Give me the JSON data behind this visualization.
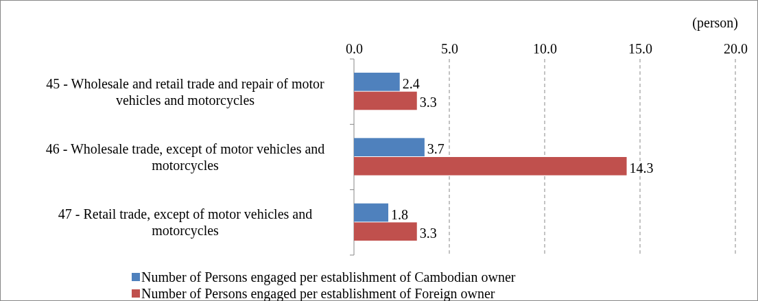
{
  "chart_data": {
    "type": "bar",
    "orientation": "horizontal",
    "xlabel": "(person)",
    "categories": [
      "45 - Wholesale and retail trade and repair of motor vehicles and motorcycles",
      "46 - Wholesale trade, except of motor vehicles and motorcycles",
      "47 - Retail trade, except of motor vehicles and motorcycles"
    ],
    "series": [
      {
        "name": "Number of Persons engaged per establishment of Cambodian owner",
        "color": "#4f81bd",
        "values": [
          2.4,
          3.7,
          1.8
        ]
      },
      {
        "name": "Number of Persons engaged per establishment of Foreign owner",
        "color": "#c0504d",
        "values": [
          3.3,
          14.3,
          3.3
        ]
      }
    ],
    "xlim": [
      0,
      20
    ],
    "xticks": [
      {
        "value": 0,
        "label": "0.0"
      },
      {
        "value": 5,
        "label": "5.0"
      },
      {
        "value": 10,
        "label": "10.0"
      },
      {
        "value": 15,
        "label": "15.0"
      },
      {
        "value": 20,
        "label": "20.0"
      }
    ],
    "grid": "x",
    "legend": "bottom",
    "data_labels": true
  }
}
